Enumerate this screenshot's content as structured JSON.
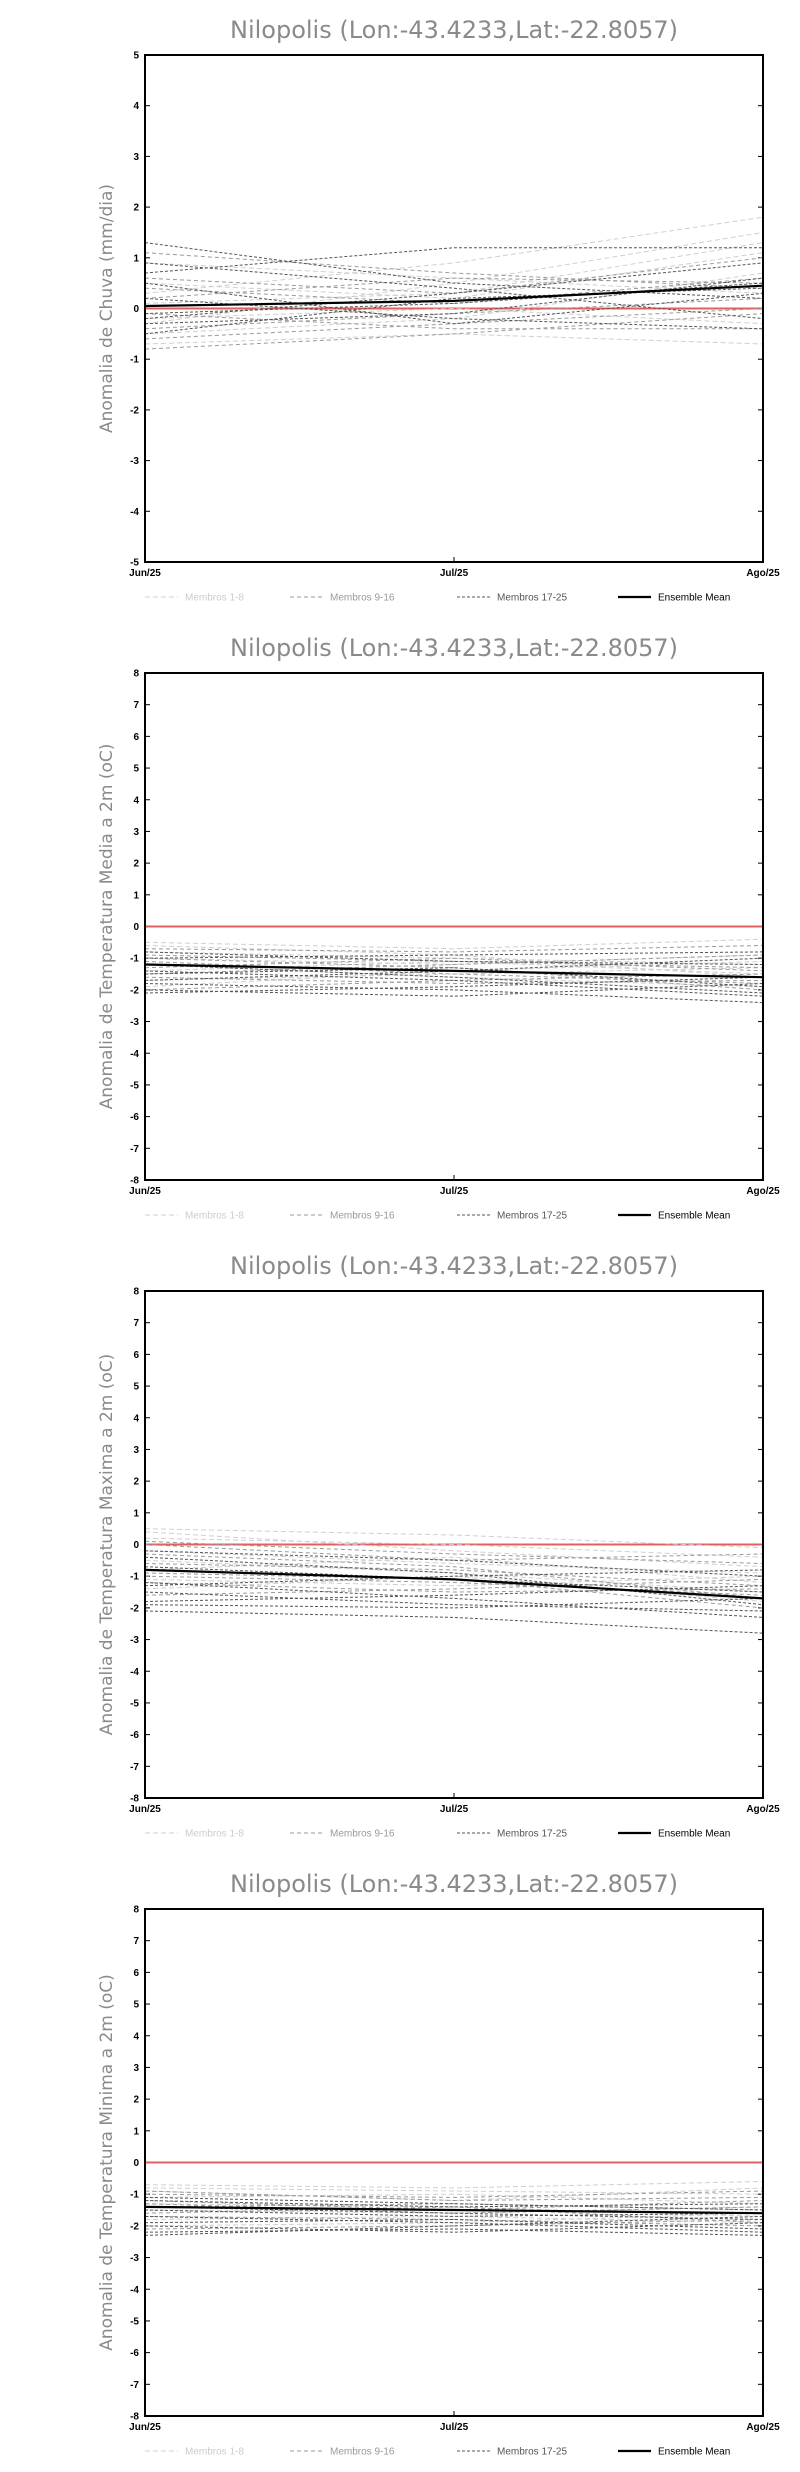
{
  "colors": {
    "members_1_8": "#cfcfcf",
    "members_9_16": "#9a9a9a",
    "members_17_25": "#555555",
    "ensemble_mean": "#000000",
    "zero_line": "#e06060"
  },
  "chart_data": [
    {
      "type": "line",
      "title": "Nilopolis (Lon:-43.4233,Lat:-22.8057)",
      "ylabel": "Anomalia de Chuva (mm/dia)",
      "xlabel": "",
      "categories": [
        "Jun/25",
        "Jul/25",
        "Ago/25"
      ],
      "ylim": [
        -5,
        5
      ],
      "yticks": [
        -5,
        -4,
        -3,
        -2,
        -1,
        0,
        1,
        2,
        3,
        4,
        5
      ],
      "legend_position": "bottom",
      "legend": [
        "Membros 1-8",
        "Membros 9-16",
        "Membros 17-25",
        "Ensemble Mean"
      ],
      "series": [
        {
          "group": "members_1_8",
          "values": [
            -0.7,
            -0.5,
            -0.7
          ]
        },
        {
          "group": "members_1_8",
          "values": [
            0.3,
            0.9,
            1.8
          ]
        },
        {
          "group": "members_1_8",
          "values": [
            -0.3,
            0.5,
            1.5
          ]
        },
        {
          "group": "members_1_8",
          "values": [
            0.5,
            0.2,
            1.1
          ]
        },
        {
          "group": "members_1_8",
          "values": [
            -0.5,
            -0.2,
            0.7
          ]
        },
        {
          "group": "members_1_8",
          "values": [
            0.9,
            0.6,
            0.3
          ]
        },
        {
          "group": "members_1_8",
          "values": [
            -0.2,
            0.0,
            -0.3
          ]
        },
        {
          "group": "members_1_8",
          "values": [
            0.1,
            0.3,
            1.3
          ]
        },
        {
          "group": "members_9_16",
          "values": [
            1.1,
            0.7,
            0.4
          ]
        },
        {
          "group": "members_9_16",
          "values": [
            -0.4,
            -0.1,
            0.2
          ]
        },
        {
          "group": "members_9_16",
          "values": [
            0.6,
            0.3,
            1.0
          ]
        },
        {
          "group": "members_9_16",
          "values": [
            -0.6,
            -0.3,
            0.0
          ]
        },
        {
          "group": "members_9_16",
          "values": [
            0.2,
            0.6,
            0.5
          ]
        },
        {
          "group": "members_9_16",
          "values": [
            -0.1,
            -0.4,
            -0.4
          ]
        },
        {
          "group": "members_9_16",
          "values": [
            0.4,
            0.1,
            0.6
          ]
        },
        {
          "group": "members_9_16",
          "values": [
            -0.8,
            -0.5,
            -0.1
          ]
        },
        {
          "group": "members_17_25",
          "values": [
            1.3,
            0.5,
            0.2
          ]
        },
        {
          "group": "members_17_25",
          "values": [
            0.7,
            1.2,
            1.2
          ]
        },
        {
          "group": "members_17_25",
          "values": [
            -0.5,
            0.2,
            0.4
          ]
        },
        {
          "group": "members_17_25",
          "values": [
            0.2,
            -0.2,
            -0.4
          ]
        },
        {
          "group": "members_17_25",
          "values": [
            -0.3,
            -0.1,
            0.6
          ]
        },
        {
          "group": "members_17_25",
          "values": [
            0.9,
            0.4,
            -0.2
          ]
        },
        {
          "group": "members_17_25",
          "values": [
            -0.2,
            0.3,
            0.9
          ]
        },
        {
          "group": "members_17_25",
          "values": [
            0.5,
            -0.3,
            0.3
          ]
        },
        {
          "group": "members_17_25",
          "values": [
            -0.1,
            0.1,
            0.5
          ]
        },
        {
          "group": "ensemble_mean",
          "values": [
            0.05,
            0.15,
            0.45
          ]
        }
      ]
    },
    {
      "type": "line",
      "title": "Nilopolis (Lon:-43.4233,Lat:-22.8057)",
      "ylabel": "Anomalia de Temperatura Media a 2m (oC)",
      "xlabel": "",
      "categories": [
        "Jun/25",
        "Jul/25",
        "Ago/25"
      ],
      "ylim": [
        -8,
        8
      ],
      "yticks": [
        -8,
        -7,
        -6,
        -5,
        -4,
        -3,
        -2,
        -1,
        0,
        1,
        2,
        3,
        4,
        5,
        6,
        7,
        8
      ],
      "legend_position": "bottom",
      "legend": [
        "Membros 1-8",
        "Membros 9-16",
        "Membros 17-25",
        "Ensemble Mean"
      ],
      "series": [
        {
          "group": "members_1_8",
          "values": [
            -0.5,
            -0.7,
            -0.4
          ]
        },
        {
          "group": "members_1_8",
          "values": [
            -1.0,
            -1.2,
            -0.9
          ]
        },
        {
          "group": "members_1_8",
          "values": [
            -1.4,
            -1.1,
            -1.5
          ]
        },
        {
          "group": "members_1_8",
          "values": [
            -0.8,
            -1.0,
            -1.2
          ]
        },
        {
          "group": "members_1_8",
          "values": [
            -1.7,
            -1.5,
            -1.3
          ]
        },
        {
          "group": "members_1_8",
          "values": [
            -1.2,
            -1.6,
            -1.9
          ]
        },
        {
          "group": "members_1_8",
          "values": [
            -0.6,
            -0.9,
            -1.6
          ]
        },
        {
          "group": "members_1_8",
          "values": [
            -1.9,
            -1.4,
            -1.1
          ]
        },
        {
          "group": "members_9_16",
          "values": [
            -0.7,
            -0.8,
            -0.6
          ]
        },
        {
          "group": "members_9_16",
          "values": [
            -1.3,
            -1.0,
            -1.4
          ]
        },
        {
          "group": "members_9_16",
          "values": [
            -1.6,
            -1.8,
            -1.7
          ]
        },
        {
          "group": "members_9_16",
          "values": [
            -1.0,
            -1.3,
            -2.0
          ]
        },
        {
          "group": "members_9_16",
          "values": [
            -2.0,
            -1.7,
            -1.5
          ]
        },
        {
          "group": "members_9_16",
          "values": [
            -1.1,
            -1.5,
            -1.8
          ]
        },
        {
          "group": "members_9_16",
          "values": [
            -1.5,
            -1.2,
            -0.9
          ]
        },
        {
          "group": "members_9_16",
          "values": [
            -0.9,
            -1.1,
            -1.3
          ]
        },
        {
          "group": "members_17_25",
          "values": [
            -1.8,
            -2.0,
            -2.4
          ]
        },
        {
          "group": "members_17_25",
          "values": [
            -2.1,
            -1.9,
            -1.6
          ]
        },
        {
          "group": "members_17_25",
          "values": [
            -1.2,
            -1.6,
            -2.1
          ]
        },
        {
          "group": "members_17_25",
          "values": [
            -1.5,
            -1.3,
            -1.9
          ]
        },
        {
          "group": "members_17_25",
          "values": [
            -0.8,
            -1.1,
            -1.2
          ]
        },
        {
          "group": "members_17_25",
          "values": [
            -2.0,
            -2.2,
            -1.8
          ]
        },
        {
          "group": "members_17_25",
          "values": [
            -1.4,
            -1.7,
            -2.2
          ]
        },
        {
          "group": "members_17_25",
          "values": [
            -1.7,
            -1.4,
            -1.0
          ]
        },
        {
          "group": "members_17_25",
          "values": [
            -1.0,
            -0.9,
            -0.8
          ]
        },
        {
          "group": "ensemble_mean",
          "values": [
            -1.2,
            -1.4,
            -1.6
          ]
        }
      ]
    },
    {
      "type": "line",
      "title": "Nilopolis (Lon:-43.4233,Lat:-22.8057)",
      "ylabel": "Anomalia de Temperatura Maxima a 2m (oC)",
      "xlabel": "",
      "categories": [
        "Jun/25",
        "Jul/25",
        "Ago/25"
      ],
      "ylim": [
        -8,
        8
      ],
      "yticks": [
        -8,
        -7,
        -6,
        -5,
        -4,
        -3,
        -2,
        -1,
        0,
        1,
        2,
        3,
        4,
        5,
        6,
        7,
        8
      ],
      "legend_position": "bottom",
      "legend": [
        "Membros 1-8",
        "Membros 9-16",
        "Membros 17-25",
        "Ensemble Mean"
      ],
      "series": [
        {
          "group": "members_1_8",
          "values": [
            0.5,
            0.3,
            -0.1
          ]
        },
        {
          "group": "members_1_8",
          "values": [
            -0.2,
            -0.6,
            -0.9
          ]
        },
        {
          "group": "members_1_8",
          "values": [
            -0.8,
            -0.4,
            -1.2
          ]
        },
        {
          "group": "members_1_8",
          "values": [
            0.2,
            0.0,
            -0.4
          ]
        },
        {
          "group": "members_1_8",
          "values": [
            -1.1,
            -1.3,
            -1.0
          ]
        },
        {
          "group": "members_1_8",
          "values": [
            -0.5,
            -0.9,
            -1.5
          ]
        },
        {
          "group": "members_1_8",
          "values": [
            0.4,
            -0.2,
            -0.7
          ]
        },
        {
          "group": "members_1_8",
          "values": [
            -1.4,
            -1.0,
            -1.8
          ]
        },
        {
          "group": "members_9_16",
          "values": [
            0.1,
            -0.3,
            -0.6
          ]
        },
        {
          "group": "members_9_16",
          "values": [
            -0.6,
            -0.8,
            -1.3
          ]
        },
        {
          "group": "members_9_16",
          "values": [
            -1.2,
            -1.5,
            -1.4
          ]
        },
        {
          "group": "members_9_16",
          "values": [
            -0.3,
            -0.7,
            -1.7
          ]
        },
        {
          "group": "members_9_16",
          "values": [
            -1.6,
            -1.4,
            -1.1
          ]
        },
        {
          "group": "members_9_16",
          "values": [
            -0.9,
            -1.1,
            -2.0
          ]
        },
        {
          "group": "members_9_16",
          "values": [
            0.0,
            -0.5,
            -0.3
          ]
        },
        {
          "group": "members_9_16",
          "values": [
            -1.0,
            -1.2,
            -1.6
          ]
        },
        {
          "group": "members_17_25",
          "values": [
            -2.1,
            -2.3,
            -2.8
          ]
        },
        {
          "group": "members_17_25",
          "values": [
            -1.5,
            -1.9,
            -2.1
          ]
        },
        {
          "group": "members_17_25",
          "values": [
            -0.4,
            -0.9,
            -1.9
          ]
        },
        {
          "group": "members_17_25",
          "values": [
            -1.8,
            -1.6,
            -1.3
          ]
        },
        {
          "group": "members_17_25",
          "values": [
            -1.2,
            -1.7,
            -2.3
          ]
        },
        {
          "group": "members_17_25",
          "values": [
            -0.2,
            -0.5,
            -1.0
          ]
        },
        {
          "group": "members_17_25",
          "values": [
            -1.9,
            -2.0,
            -1.7
          ]
        },
        {
          "group": "members_17_25",
          "values": [
            -0.7,
            -1.1,
            -1.5
          ]
        },
        {
          "group": "members_17_25",
          "values": [
            -1.3,
            -1.0,
            -0.8
          ]
        },
        {
          "group": "ensemble_mean",
          "values": [
            -0.8,
            -1.1,
            -1.7
          ]
        }
      ]
    },
    {
      "type": "line",
      "title": "Nilopolis (Lon:-43.4233,Lat:-22.8057)",
      "ylabel": "Anomalia de Temperatura Minima a 2m (oC)",
      "xlabel": "",
      "categories": [
        "Jun/25",
        "Jul/25",
        "Ago/25"
      ],
      "ylim": [
        -8,
        8
      ],
      "yticks": [
        -8,
        -7,
        -6,
        -5,
        -4,
        -3,
        -2,
        -1,
        0,
        1,
        2,
        3,
        4,
        5,
        6,
        7,
        8
      ],
      "legend_position": "bottom",
      "legend": [
        "Membros 1-8",
        "Membros 9-16",
        "Membros 17-25",
        "Ensemble Mean"
      ],
      "series": [
        {
          "group": "members_1_8",
          "values": [
            -0.7,
            -0.8,
            -0.6
          ]
        },
        {
          "group": "members_1_8",
          "values": [
            -1.1,
            -1.0,
            -1.3
          ]
        },
        {
          "group": "members_1_8",
          "values": [
            -1.5,
            -1.6,
            -1.4
          ]
        },
        {
          "group": "members_1_8",
          "values": [
            -0.9,
            -1.2,
            -0.8
          ]
        },
        {
          "group": "members_1_8",
          "values": [
            -1.8,
            -1.7,
            -1.9
          ]
        },
        {
          "group": "members_1_8",
          "values": [
            -1.3,
            -1.4,
            -1.7
          ]
        },
        {
          "group": "members_1_8",
          "values": [
            -0.8,
            -0.9,
            -1.0
          ]
        },
        {
          "group": "members_1_8",
          "values": [
            -2.0,
            -1.9,
            -1.6
          ]
        },
        {
          "group": "members_9_16",
          "values": [
            -1.0,
            -1.1,
            -0.9
          ]
        },
        {
          "group": "members_9_16",
          "values": [
            -1.4,
            -1.3,
            -1.5
          ]
        },
        {
          "group": "members_9_16",
          "values": [
            -1.7,
            -1.8,
            -2.0
          ]
        },
        {
          "group": "members_9_16",
          "values": [
            -1.2,
            -1.5,
            -1.2
          ]
        },
        {
          "group": "members_9_16",
          "values": [
            -2.1,
            -2.0,
            -1.8
          ]
        },
        {
          "group": "members_9_16",
          "values": [
            -1.6,
            -1.4,
            -1.9
          ]
        },
        {
          "group": "members_9_16",
          "values": [
            -0.9,
            -1.2,
            -1.1
          ]
        },
        {
          "group": "members_9_16",
          "values": [
            -1.3,
            -1.6,
            -1.4
          ]
        },
        {
          "group": "members_17_25",
          "values": [
            -2.2,
            -2.1,
            -2.3
          ]
        },
        {
          "group": "members_17_25",
          "values": [
            -1.9,
            -1.8,
            -2.1
          ]
        },
        {
          "group": "members_17_25",
          "values": [
            -1.5,
            -1.7,
            -1.6
          ]
        },
        {
          "group": "members_17_25",
          "values": [
            -2.0,
            -2.2,
            -1.9
          ]
        },
        {
          "group": "members_17_25",
          "values": [
            -1.1,
            -1.3,
            -1.5
          ]
        },
        {
          "group": "members_17_25",
          "values": [
            -1.7,
            -1.9,
            -2.2
          ]
        },
        {
          "group": "members_17_25",
          "values": [
            -1.4,
            -1.6,
            -1.8
          ]
        },
        {
          "group": "members_17_25",
          "values": [
            -2.3,
            -2.0,
            -1.7
          ]
        },
        {
          "group": "members_17_25",
          "values": [
            -1.2,
            -1.4,
            -1.3
          ]
        },
        {
          "group": "ensemble_mean",
          "values": [
            -1.4,
            -1.5,
            -1.6
          ]
        }
      ]
    }
  ]
}
